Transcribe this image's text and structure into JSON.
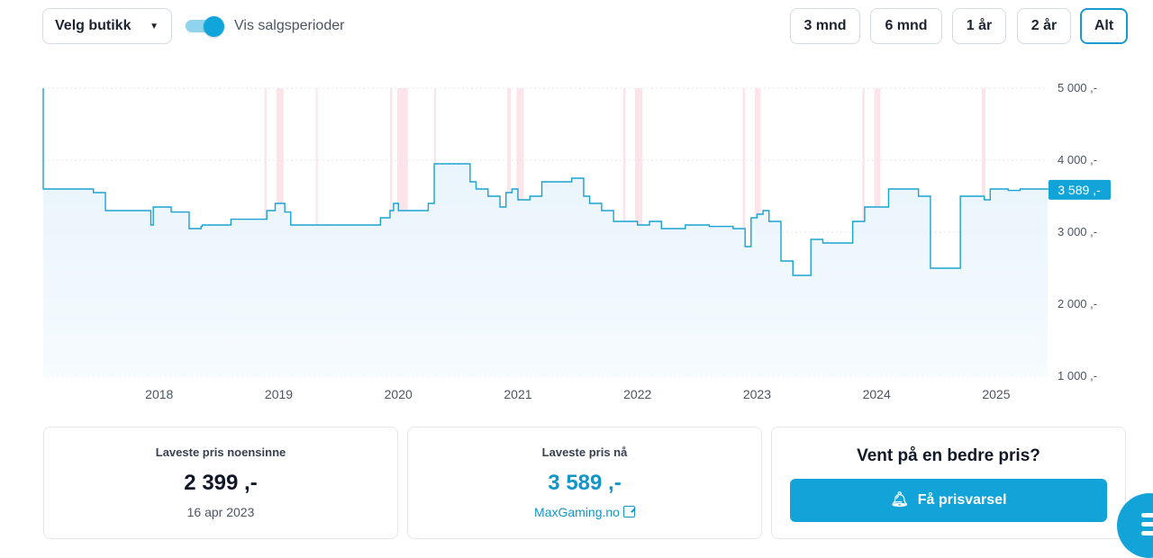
{
  "toolbar": {
    "store_select_label": "Velg butikk",
    "toggle_label": "Vis salgsperioder",
    "toggle_on": true,
    "ranges": [
      "3 mnd",
      "6 mnd",
      "1 år",
      "2 år",
      "Alt"
    ],
    "active_range": "Alt"
  },
  "chart_data": {
    "type": "line",
    "title": "",
    "xlabel": "",
    "ylabel": "",
    "x_ticks": [
      "2018",
      "2019",
      "2020",
      "2021",
      "2022",
      "2023",
      "2024",
      "2025"
    ],
    "y_ticks": [
      "5 000 ,-",
      "4 000 ,-",
      "3 000 ,-",
      "2 000 ,-",
      "1 000 ,-"
    ],
    "y_tick_values": [
      5000,
      4000,
      3000,
      2000,
      1000
    ],
    "ylim": [
      1000,
      5000
    ],
    "xlim": [
      2017.03,
      2025.43
    ],
    "current_price_label": "3 589 ,-",
    "current_price": 3589,
    "sale_periods": [
      [
        2018.88,
        2018.9
      ],
      [
        2018.98,
        2019.04
      ],
      [
        2019.31,
        2019.32
      ],
      [
        2019.93,
        2019.95
      ],
      [
        2019.99,
        2020.08
      ],
      [
        2020.3,
        2020.31
      ],
      [
        2020.91,
        2020.94
      ],
      [
        2020.99,
        2021.05
      ],
      [
        2021.88,
        2021.9
      ],
      [
        2021.98,
        2022.04
      ],
      [
        2022.88,
        2022.9
      ],
      [
        2022.98,
        2023.03
      ],
      [
        2023.88,
        2023.9
      ],
      [
        2023.98,
        2024.03
      ],
      [
        2024.88,
        2024.91
      ]
    ],
    "series": [
      {
        "name": "Pris",
        "x": [
          2017.03,
          2017.03,
          2017.35,
          2017.45,
          2017.55,
          2017.7,
          2017.9,
          2017.93,
          2017.95,
          2018.1,
          2018.25,
          2018.35,
          2018.36,
          2018.6,
          2018.9,
          2018.97,
          2019.05,
          2019.1,
          2019.3,
          2019.6,
          2019.85,
          2019.93,
          2019.96,
          2020.0,
          2020.1,
          2020.25,
          2020.3,
          2020.45,
          2020.6,
          2020.65,
          2020.75,
          2020.85,
          2020.9,
          2020.95,
          2021.0,
          2021.1,
          2021.2,
          2021.45,
          2021.55,
          2021.6,
          2021.7,
          2021.8,
          2021.9,
          2022.0,
          2022.1,
          2022.2,
          2022.4,
          2022.6,
          2022.8,
          2022.9,
          2022.95,
          2023.0,
          2023.05,
          2023.1,
          2023.2,
          2023.3,
          2023.45,
          2023.55,
          2023.8,
          2023.9,
          2024.1,
          2024.35,
          2024.45,
          2024.7,
          2024.9,
          2024.95,
          2025.1,
          2025.2,
          2025.43
        ],
        "y": [
          5000,
          3600,
          3600,
          3550,
          3300,
          3300,
          3300,
          3100,
          3350,
          3280,
          3050,
          3080,
          3100,
          3180,
          3300,
          3400,
          3280,
          3100,
          3100,
          3100,
          3200,
          3300,
          3400,
          3300,
          3300,
          3400,
          3950,
          3950,
          3700,
          3600,
          3500,
          3350,
          3550,
          3600,
          3450,
          3500,
          3700,
          3750,
          3500,
          3400,
          3300,
          3150,
          3150,
          3100,
          3150,
          3050,
          3100,
          3080,
          3050,
          2800,
          3200,
          3250,
          3300,
          3150,
          2600,
          2400,
          2900,
          2850,
          3150,
          3350,
          3600,
          3500,
          2500,
          3500,
          3450,
          3600,
          3580,
          3600,
          3589
        ]
      }
    ]
  },
  "cards": {
    "lowest_ever": {
      "title": "Laveste pris noensinne",
      "value": "2 399 ,-",
      "date": "16 apr 2023"
    },
    "lowest_now": {
      "title": "Laveste pris nå",
      "value": "3 589 ,-",
      "store": "MaxGaming.no"
    },
    "alert": {
      "title": "Vent på en bedre pris?",
      "button_label": "Få prisvarsel"
    }
  },
  "colors": {
    "accent": "#12a4d9",
    "line": "#1aa3d2",
    "sale_band": "#fde4ea",
    "fill": "#e8f4fb"
  }
}
